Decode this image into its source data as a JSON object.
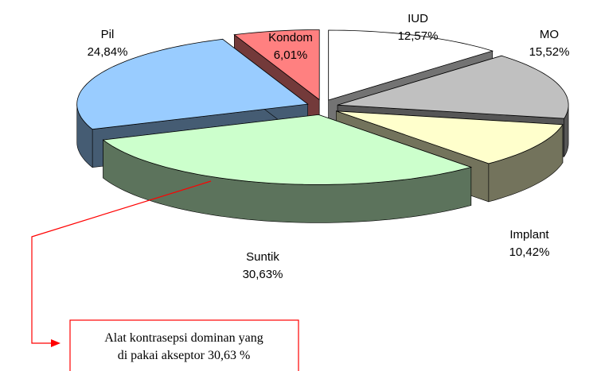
{
  "chart_data": {
    "type": "pie3d",
    "categories": [
      "IUD",
      "MO",
      "Implant",
      "Suntik",
      "Pil",
      "Kondom"
    ],
    "values": [
      12.57,
      15.52,
      10.42,
      30.63,
      24.84,
      6.01
    ],
    "value_labels": [
      "12,57%",
      "15,52%",
      "10,42%",
      "30,63%",
      "24,84%",
      "6,01%"
    ],
    "colors": [
      "#ffffff",
      "#c0c0c0",
      "#ffffcc",
      "#ccffcc",
      "#99ccff",
      "#ff8080"
    ],
    "annotation": [
      "Alat kontrasepsi dominan yang",
      "di pakai akseptor 30,63 %"
    ]
  }
}
